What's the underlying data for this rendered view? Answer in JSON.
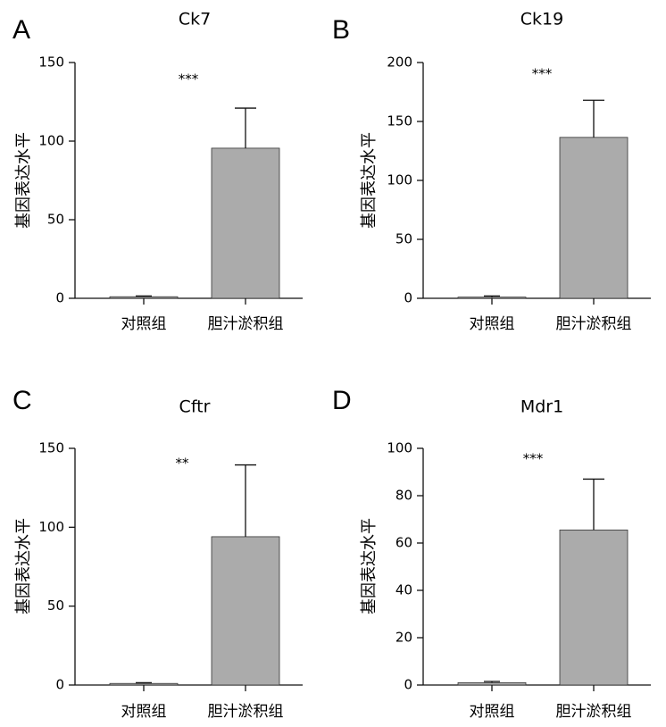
{
  "chart_data": [
    {
      "panel": "A",
      "type": "bar",
      "title": "Ck7",
      "ylabel": "基因表达水平",
      "xlabel": "",
      "categories": [
        "对照组",
        "胆汁淤积组"
      ],
      "values": [
        1,
        95.5
      ],
      "error": [
        0.5,
        25.5
      ],
      "ylim": [
        0,
        150
      ],
      "yticks": [
        0,
        50,
        100,
        150
      ],
      "significance": "***",
      "bar_colors": [
        "#ababab",
        "#ababab"
      ]
    },
    {
      "panel": "B",
      "type": "bar",
      "title": "Ck19",
      "ylabel": "基因表达水平",
      "xlabel": "",
      "categories": [
        "对照组",
        "胆汁淤积组"
      ],
      "values": [
        1,
        136.5
      ],
      "error": [
        1,
        31.5
      ],
      "ylim": [
        0,
        200
      ],
      "yticks": [
        0,
        50,
        100,
        150,
        200
      ],
      "significance": "***",
      "bar_colors": [
        "#ababab",
        "#ababab"
      ]
    },
    {
      "panel": "C",
      "type": "bar",
      "title": "Cftr",
      "ylabel": "基因表达水平",
      "xlabel": "",
      "categories": [
        "对照组",
        "胆汁淤积组"
      ],
      "values": [
        1,
        94
      ],
      "error": [
        0.5,
        45.5
      ],
      "ylim": [
        0,
        150
      ],
      "yticks": [
        0,
        50,
        100,
        150
      ],
      "significance": "**",
      "bar_colors": [
        "#ababab",
        "#ababab"
      ]
    },
    {
      "panel": "D",
      "type": "bar",
      "title": "Mdr1",
      "ylabel": "基因表达水平",
      "xlabel": "",
      "categories": [
        "对照组",
        "胆汁淤积组"
      ],
      "values": [
        1,
        65.5
      ],
      "error": [
        0.5,
        21.5
      ],
      "ylim": [
        0,
        100
      ],
      "yticks": [
        0,
        20,
        40,
        60,
        80,
        100
      ],
      "significance": "***",
      "bar_colors": [
        "#ababab",
        "#ababab"
      ]
    }
  ]
}
